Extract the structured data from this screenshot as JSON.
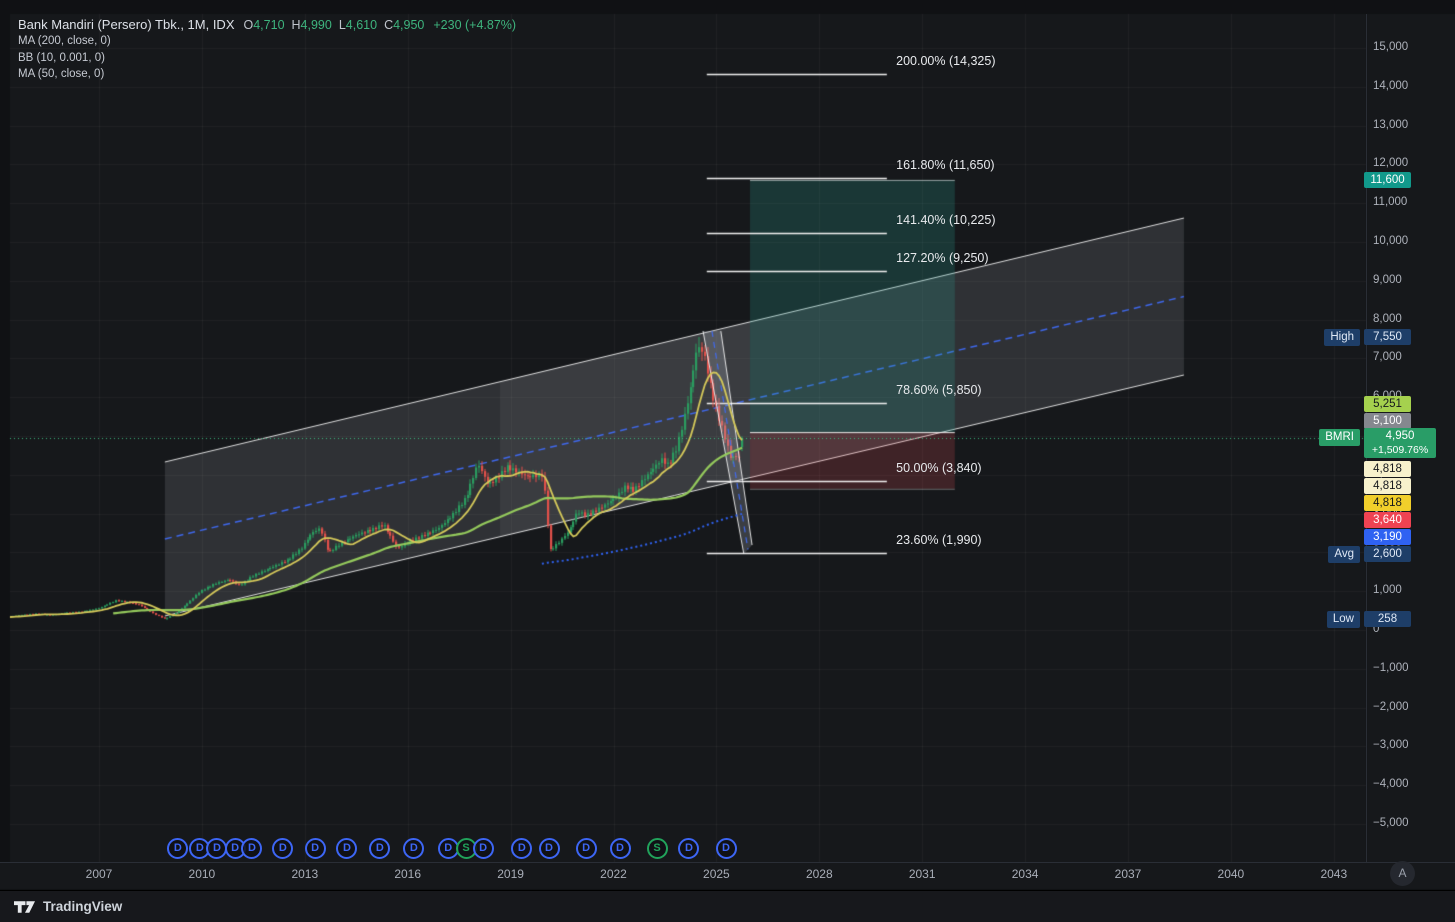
{
  "app": {
    "footer_brand": "TradingView"
  },
  "header": {
    "title": "Bank Mandiri (Persero) Tbk., 1M, IDX",
    "ohlc": [
      {
        "k": "O",
        "v": "4,710"
      },
      {
        "k": "H",
        "v": "4,990"
      },
      {
        "k": "L",
        "v": "4,610"
      },
      {
        "k": "C",
        "v": "4,950"
      }
    ],
    "change": "+230 (+4.87%)",
    "indicators": [
      "MA (200, close, 0)",
      "BB (10, 0.001, 0)",
      "MA (50, close, 0)"
    ]
  },
  "axes": {
    "auto_button": "A",
    "y_ticks": [
      {
        "v": 15000,
        "t": "15,000"
      },
      {
        "v": 14000,
        "t": "14,000"
      },
      {
        "v": 13000,
        "t": "13,000"
      },
      {
        "v": 12000,
        "t": "12,000"
      },
      {
        "v": 11000,
        "t": "11,000"
      },
      {
        "v": 10000,
        "t": "10,000"
      },
      {
        "v": 9000,
        "t": "9,000"
      },
      {
        "v": 8000,
        "t": "8,000"
      },
      {
        "v": 7000,
        "t": "7,000"
      },
      {
        "v": 6000,
        "t": "6,000"
      },
      {
        "v": 5000,
        "t": "5,000"
      },
      {
        "v": 4000,
        "t": "4,000"
      },
      {
        "v": 3000,
        "t": "3,000"
      },
      {
        "v": 2000,
        "t": "2,000"
      },
      {
        "v": 1000,
        "t": "1,000"
      },
      {
        "v": 0,
        "t": "0"
      },
      {
        "v": -1000,
        "t": "−1,000"
      },
      {
        "v": -2000,
        "t": "−2,000"
      },
      {
        "v": -3000,
        "t": "−3,000"
      },
      {
        "v": -4000,
        "t": "−4,000"
      },
      {
        "v": -5000,
        "t": "−5,000"
      }
    ],
    "x_ticks": [
      {
        "year": 2007,
        "t": "2007"
      },
      {
        "year": 2010,
        "t": "2010"
      },
      {
        "year": 2013,
        "t": "2013"
      },
      {
        "year": 2016,
        "t": "2016"
      },
      {
        "year": 2019,
        "t": "2019"
      },
      {
        "year": 2022,
        "t": "2022"
      },
      {
        "year": 2025,
        "t": "2025"
      },
      {
        "year": 2028,
        "t": "2028"
      },
      {
        "year": 2031,
        "t": "2031"
      },
      {
        "year": 2034,
        "t": "2034"
      },
      {
        "year": 2037,
        "t": "2037"
      },
      {
        "year": 2040,
        "t": "2040"
      },
      {
        "year": 2043,
        "t": "2043"
      }
    ]
  },
  "badges": [
    {
      "text": "11,600",
      "bg": "#11998b",
      "fg": "#ffffff",
      "y": 180
    },
    {
      "side": "High",
      "text": "7,550",
      "bg": "#1e3e68",
      "fg": "#e0e9f6",
      "y": 337
    },
    {
      "text": "5,251",
      "bg": "#a5d14e",
      "fg": "#15181d",
      "y": 404
    },
    {
      "text": "5,100",
      "bg": "#85888f",
      "fg": "#ffffff",
      "y": 421
    },
    {
      "side": "BMRI",
      "text": "4,950",
      "sub": "+1,509.76%",
      "bg": "#299d67",
      "fg": "#ffffff",
      "y": 443,
      "h": 30
    },
    {
      "text": "4,818",
      "bg": "#f7f1cc",
      "fg": "#15181d",
      "y": 469
    },
    {
      "text": "4,818",
      "bg": "#f7f1cc",
      "fg": "#15181d",
      "y": 486
    },
    {
      "text": "4,818",
      "bg": "#f1cf2b",
      "fg": "#15181d",
      "y": 503
    },
    {
      "text": "3,640",
      "bg": "#ef4352",
      "fg": "#ffffff",
      "y": 520
    },
    {
      "text": "3,190",
      "bg": "#2f62f2",
      "fg": "#ffffff",
      "y": 537
    },
    {
      "side": "Avg",
      "text": "2,600",
      "bg": "#1e3e68",
      "fg": "#e0e9f6",
      "y": 554
    },
    {
      "side": "Low",
      "text": "258",
      "bg": "#1e3e68",
      "fg": "#e0e9f6",
      "y": 619
    }
  ],
  "colors": {
    "up": "#2a9c5f",
    "down": "#e2504a",
    "ma50": "#94c95c",
    "ma200": "#2f62f2",
    "bb_basis": "#d5c95a",
    "price_line": "#3cb77e",
    "channel_line": "rgba(255,255,255,0.85)",
    "channel_mid": "rgba(63,106,245,0.95)",
    "channel_fill": "rgba(172,176,186,0.17)",
    "channel_highlight": "rgba(255,255,255,0.055)",
    "steep_fill": "rgba(172,176,186,0.25)",
    "profit_fill": "rgba(42,158,145,0.23)",
    "loss_fill": "rgba(228,80,92,0.20)",
    "fib_line": "#efefef",
    "grid": "rgba(250,250,255,0.045)",
    "pane_bg": "#16181b",
    "marker_dividend": "#3d66f5",
    "marker_split": "#21a35b"
  },
  "chart_data": {
    "type": "candlestick",
    "symbol": "BMRI",
    "exchange": "IDX",
    "timeframe": "1M",
    "title": "Bank Mandiri (Persero) Tbk., 1M, IDX",
    "last_bar": {
      "open": 4710,
      "high": 4990,
      "low": 4610,
      "close": 4950
    },
    "change": 230,
    "change_pct": 4.87,
    "current_price": 4950,
    "stats": {
      "high": 7550,
      "avg": 2600,
      "low": 258
    },
    "indicator_values": {
      "ma50": 5251,
      "ma200": 3190,
      "bb_basis": 4818,
      "bb_upper": 4818,
      "bb_lower": 4818
    },
    "visible_price_range": [
      -5600,
      15500
    ],
    "visible_time_range": [
      2004.2,
      2046.6
    ],
    "bars_start_year": 2003.33,
    "bars_end_year": 2025.785,
    "close_path": [
      [
        2003.33,
        310
      ],
      [
        2003.9,
        330
      ],
      [
        2004.42,
        350
      ],
      [
        2004.8,
        390
      ],
      [
        2005.2,
        420
      ],
      [
        2005.6,
        385
      ],
      [
        2006.0,
        440
      ],
      [
        2006.5,
        470
      ],
      [
        2007.0,
        560
      ],
      [
        2007.5,
        760
      ],
      [
        2007.9,
        710
      ],
      [
        2008.2,
        640
      ],
      [
        2008.6,
        420
      ],
      [
        2008.92,
        290
      ],
      [
        2009.2,
        400
      ],
      [
        2009.6,
        700
      ],
      [
        2009.95,
        1000
      ],
      [
        2010.4,
        1200
      ],
      [
        2010.8,
        1300
      ],
      [
        2011.1,
        1150
      ],
      [
        2011.5,
        1400
      ],
      [
        2012.0,
        1600
      ],
      [
        2012.5,
        1800
      ],
      [
        2012.9,
        2100
      ],
      [
        2013.2,
        2500
      ],
      [
        2013.45,
        2620
      ],
      [
        2013.7,
        2000
      ],
      [
        2014.0,
        2200
      ],
      [
        2014.5,
        2450
      ],
      [
        2015.0,
        2600
      ],
      [
        2015.3,
        2720
      ],
      [
        2015.7,
        2100
      ],
      [
        2016.0,
        2260
      ],
      [
        2016.5,
        2450
      ],
      [
        2016.9,
        2620
      ],
      [
        2017.3,
        2950
      ],
      [
        2017.7,
        3400
      ],
      [
        2018.05,
        4300
      ],
      [
        2018.35,
        3750
      ],
      [
        2018.6,
        3900
      ],
      [
        2018.9,
        4200
      ],
      [
        2019.15,
        4100
      ],
      [
        2019.5,
        3950
      ],
      [
        2019.95,
        4000
      ],
      [
        2020.15,
        2050
      ],
      [
        2020.4,
        2250
      ],
      [
        2020.7,
        2550
      ],
      [
        2020.95,
        3050
      ],
      [
        2021.2,
        2950
      ],
      [
        2021.5,
        3080
      ],
      [
        2021.8,
        3250
      ],
      [
        2022.1,
        3450
      ],
      [
        2022.35,
        3700
      ],
      [
        2022.6,
        3600
      ],
      [
        2022.9,
        3900
      ],
      [
        2023.15,
        4150
      ],
      [
        2023.4,
        4400
      ],
      [
        2023.6,
        4250
      ],
      [
        2023.85,
        4700
      ],
      [
        2024.05,
        5400
      ],
      [
        2024.25,
        6250
      ],
      [
        2024.42,
        7200
      ],
      [
        2024.55,
        7300
      ],
      [
        2024.7,
        6900
      ],
      [
        2024.85,
        6200
      ],
      [
        2025.0,
        5700
      ],
      [
        2025.15,
        5250
      ],
      [
        2025.3,
        4800
      ],
      [
        2025.45,
        4350
      ],
      [
        2025.55,
        4600
      ],
      [
        2025.63,
        4250
      ],
      [
        2025.7,
        4710
      ],
      [
        2025.78,
        4950
      ]
    ],
    "special_points": {
      "peak_year": 2024.52,
      "peak_high": 7550,
      "low_year": 2008.96,
      "low": 258
    },
    "fib_extension": {
      "line_start_year": 2024.72,
      "line_end_year": 2029.97,
      "label_year": 2030.24,
      "levels": [
        {
          "label": "200.00% (14,325)",
          "price": 14325
        },
        {
          "label": "161.80% (11,650)",
          "price": 11650
        },
        {
          "label": "141.40% (10,225)",
          "price": 10225
        },
        {
          "label": "127.20% (9,250)",
          "price": 9250
        },
        {
          "label": "78.60% (5,850)",
          "price": 5850
        },
        {
          "label": "50.00% (3,840)",
          "price": 3840
        },
        {
          "label": "23.60% (1,990)",
          "price": 1990
        }
      ]
    },
    "channel": {
      "start_year": 2008.92,
      "end_year": 2038.63,
      "upper_prices": [
        4330,
        10617
      ],
      "lower_prices": [
        361,
        6572
      ],
      "mid_prices": [
        2346,
        8594
      ],
      "highlight_years": [
        2018.69,
        2025.98
      ]
    },
    "steep_channel": {
      "left_line": [
        [
          2024.61,
          7705
        ],
        [
          2025.8,
          1959
        ]
      ],
      "right_line": [
        [
          2025.13,
          7705
        ],
        [
          2026.04,
          2190
        ]
      ],
      "mid_line": [
        [
          2024.87,
          7705
        ],
        [
          2025.92,
          2075
        ]
      ]
    },
    "position_tool": {
      "start_year": 2025.98,
      "end_year": 2031.95,
      "target": 11600,
      "entry": 5100,
      "stop": 3640
    },
    "markers": [
      {
        "t": "D",
        "year": 2009.3
      },
      {
        "t": "D",
        "year": 2009.94
      },
      {
        "t": "D",
        "year": 2010.44
      },
      {
        "t": "D",
        "year": 2010.97
      },
      {
        "t": "D",
        "year": 2011.46
      },
      {
        "t": "D",
        "year": 2012.36
      },
      {
        "t": "D",
        "year": 2013.3
      },
      {
        "t": "D",
        "year": 2014.23
      },
      {
        "t": "D",
        "year": 2015.19
      },
      {
        "t": "D",
        "year": 2016.18
      },
      {
        "t": "D",
        "year": 2017.18
      },
      {
        "t": "S",
        "year": 2017.7
      },
      {
        "t": "D",
        "year": 2018.2
      },
      {
        "t": "D",
        "year": 2019.33
      },
      {
        "t": "D",
        "year": 2020.12
      },
      {
        "t": "D",
        "year": 2021.2
      },
      {
        "t": "D",
        "year": 2022.19
      },
      {
        "t": "S",
        "year": 2023.27
      },
      {
        "t": "D",
        "year": 2024.2
      },
      {
        "t": "D",
        "year": 2025.28
      }
    ]
  }
}
